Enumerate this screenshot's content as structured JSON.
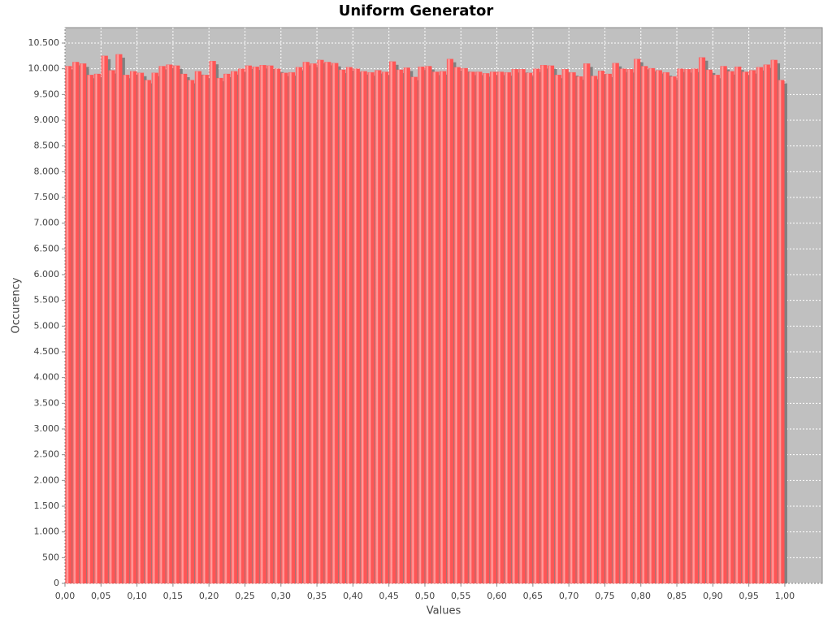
{
  "chart_data": {
    "type": "histogram",
    "title": "Uniform Generator",
    "x_label": "Values",
    "y_label": "Occurency",
    "color": "#ff5555",
    "shadow_color": "#808080",
    "grid": true,
    "bins": [
      0,
      0.01,
      0.02,
      0.03,
      0.04,
      0.05,
      0.06,
      0.07,
      0.08,
      0.09,
      0.1,
      0.11,
      0.12,
      0.13,
      0.14,
      0.15,
      0.16,
      0.17,
      0.18,
      0.19,
      0.2,
      0.21,
      0.22,
      0.23,
      0.24,
      0.25,
      0.26,
      0.27,
      0.28,
      0.29,
      0.3,
      0.31,
      0.32,
      0.33,
      0.34,
      0.35,
      0.36,
      0.37,
      0.38,
      0.39,
      0.4,
      0.41,
      0.42,
      0.43,
      0.44,
      0.45,
      0.46,
      0.47,
      0.48,
      0.49,
      0.5,
      0.51,
      0.52,
      0.53,
      0.54,
      0.55,
      0.56,
      0.57,
      0.58,
      0.59,
      0.6,
      0.61,
      0.62,
      0.63,
      0.64,
      0.65,
      0.66,
      0.67,
      0.68,
      0.69,
      0.7,
      0.71,
      0.72,
      0.73,
      0.74,
      0.75,
      0.76,
      0.77,
      0.78,
      0.79,
      0.8,
      0.81,
      0.82,
      0.83,
      0.84,
      0.85,
      0.86,
      0.87,
      0.88,
      0.89,
      0.9,
      0.91,
      0.92,
      0.93,
      0.94,
      0.95,
      0.96,
      0.97,
      0.98,
      0.99,
      1
    ],
    "values": [
      10050,
      10130,
      10100,
      9880,
      9900,
      10250,
      9970,
      10280,
      9880,
      9950,
      9920,
      9780,
      9920,
      10050,
      10080,
      10060,
      9900,
      9780,
      9950,
      9880,
      10150,
      9820,
      9900,
      9950,
      10000,
      10060,
      10040,
      10070,
      10060,
      10000,
      9920,
      9930,
      10030,
      10130,
      10100,
      10170,
      10130,
      10110,
      9980,
      10030,
      10000,
      9950,
      9930,
      9970,
      9940,
      10140,
      9980,
      10020,
      9840,
      10040,
      10050,
      9940,
      9950,
      10190,
      10030,
      10010,
      9940,
      9940,
      9910,
      9940,
      9940,
      9930,
      9990,
      9990,
      9920,
      10000,
      10070,
      10060,
      9880,
      9990,
      9930,
      9850,
      10100,
      9860,
      9960,
      9900,
      10110,
      10000,
      9990,
      10190,
      10050,
      10010,
      9970,
      9930,
      9850,
      10000,
      9990,
      10000,
      10220,
      9980,
      9880,
      10050,
      9950,
      10040,
      9940,
      9970,
      10030,
      10080,
      10170,
      9780
    ],
    "xlim": [
      0,
      1.052
    ],
    "ylim": [
      0,
      10800
    ],
    "xticks": [
      {
        "value": 0,
        "label": "0,00"
      },
      {
        "value": 0.05,
        "label": "0,05"
      },
      {
        "value": 0.1,
        "label": "0,10"
      },
      {
        "value": 0.15,
        "label": "0,15"
      },
      {
        "value": 0.2,
        "label": "0,20"
      },
      {
        "value": 0.25,
        "label": "0,25"
      },
      {
        "value": 0.3,
        "label": "0,30"
      },
      {
        "value": 0.35,
        "label": "0,35"
      },
      {
        "value": 0.4,
        "label": "0,40"
      },
      {
        "value": 0.45,
        "label": "0,45"
      },
      {
        "value": 0.5,
        "label": "0,50"
      },
      {
        "value": 0.55,
        "label": "0,55"
      },
      {
        "value": 0.6,
        "label": "0,60"
      },
      {
        "value": 0.65,
        "label": "0,65"
      },
      {
        "value": 0.7,
        "label": "0,70"
      },
      {
        "value": 0.75,
        "label": "0,75"
      },
      {
        "value": 0.8,
        "label": "0,80"
      },
      {
        "value": 0.85,
        "label": "0,85"
      },
      {
        "value": 0.9,
        "label": "0,90"
      },
      {
        "value": 0.95,
        "label": "0,95"
      },
      {
        "value": 1,
        "label": "1,00"
      }
    ],
    "yticks": [
      0,
      500,
      {
        "value": 1000,
        "label": "1.000"
      },
      {
        "value": 1500,
        "label": "1.500"
      },
      {
        "value": 2000,
        "label": "2.000"
      },
      {
        "value": 2500,
        "label": "2.500"
      },
      {
        "value": 3000,
        "label": "3.000"
      },
      {
        "value": 3500,
        "label": "3.500"
      },
      {
        "value": 4000,
        "label": "4.000"
      },
      {
        "value": 4500,
        "label": "4.500"
      },
      {
        "value": 5000,
        "label": "5.000"
      },
      {
        "value": 5500,
        "label": "5.500"
      },
      {
        "value": 6000,
        "label": "6.000"
      },
      {
        "value": 6500,
        "label": "6.500"
      },
      {
        "value": 7000,
        "label": "7.000"
      },
      {
        "value": 7500,
        "label": "7.500"
      },
      {
        "value": 8000,
        "label": "8.000"
      },
      {
        "value": 8500,
        "label": "8.500"
      },
      {
        "value": 9000,
        "label": "9.000"
      },
      {
        "value": 9500,
        "label": "9.500"
      },
      {
        "value": 10000,
        "label": "10.000"
      },
      {
        "value": 10500,
        "label": "10.500"
      }
    ]
  }
}
